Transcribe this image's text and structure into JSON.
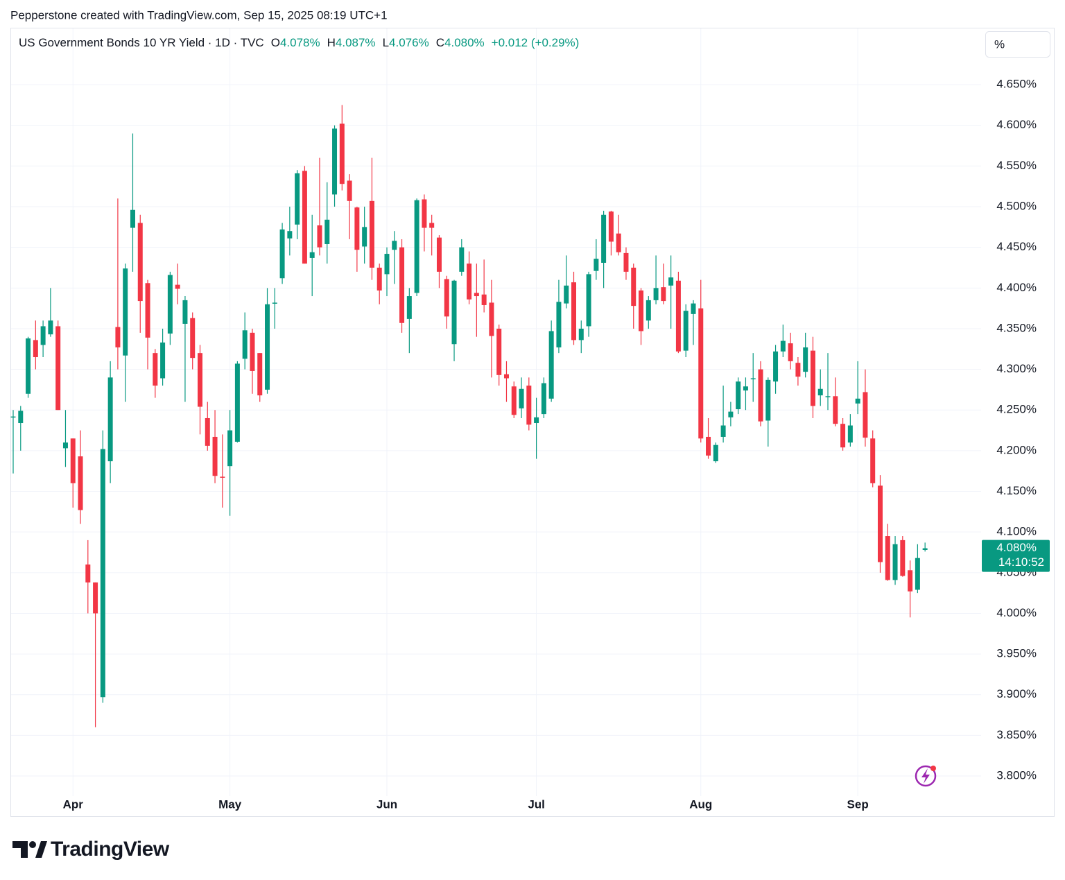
{
  "watermark": "Pepperstone created with TradingView.com, Sep 15, 2025 08:19 UTC+1",
  "header": {
    "symbol": "US Government Bonds 10 YR Yield · 1D · TVC",
    "ohlc": [
      {
        "key": "O",
        "value": "4.078%"
      },
      {
        "key": "H",
        "value": "4.087%"
      },
      {
        "key": "L",
        "value": "4.076%"
      },
      {
        "key": "C",
        "value": "4.080%"
      }
    ],
    "change": "+0.012 (+0.29%)"
  },
  "brand": "TradingView",
  "chart_data": {
    "type": "candlestick",
    "axis_unit": "%",
    "up_color": "#089981",
    "down_color": "#f23645",
    "categories": [
      null,
      null,
      null,
      null,
      null,
      null,
      null,
      null,
      "Apr",
      null,
      null,
      null,
      null,
      null,
      null,
      null,
      null,
      null,
      null,
      null,
      null,
      null,
      null,
      null,
      null,
      null,
      null,
      null,
      null,
      "May",
      null,
      null,
      null,
      null,
      null,
      null,
      null,
      null,
      null,
      null,
      null,
      null,
      null,
      null,
      null,
      null,
      null,
      null,
      null,
      null,
      "Jun",
      null,
      null,
      null,
      null,
      null,
      null,
      null,
      null,
      null,
      null,
      null,
      null,
      null,
      null,
      null,
      null,
      null,
      null,
      null,
      "Jul",
      null,
      null,
      null,
      null,
      null,
      null,
      null,
      null,
      null,
      null,
      null,
      null,
      null,
      null,
      null,
      null,
      null,
      null,
      null,
      null,
      null,
      "Aug",
      null,
      null,
      null,
      null,
      null,
      null,
      null,
      null,
      null,
      null,
      null,
      null,
      null,
      null,
      null,
      null,
      null,
      null,
      null,
      null,
      "Sep",
      null,
      null,
      null,
      null,
      null,
      null,
      null,
      null,
      null
    ],
    "open": [
      4.241,
      4.234,
      4.27,
      4.336,
      4.33,
      4.343,
      4.353,
      4.203,
      4.215,
      4.193,
      4.06,
      4.038,
      3.897,
      4.187,
      4.352,
      4.317,
      4.474,
      4.48,
      4.406,
      4.32,
      4.289,
      4.344,
      4.404,
      4.356,
      4.363,
      4.32,
      4.24,
      4.217,
      4.168,
      4.181,
      4.211,
      4.313,
      4.345,
      4.32,
      4.275,
      4.381,
      4.412,
      4.461,
      4.478,
      4.544,
      4.437,
      4.477,
      4.454,
      4.515,
      4.602,
      4.532,
      4.499,
      4.451,
      4.507,
      4.425,
      4.417,
      4.447,
      4.45,
      4.362,
      4.394,
      4.509,
      4.48,
      4.462,
      4.411,
      4.331,
      4.42,
      4.43,
      4.394,
      4.392,
      4.382,
      4.35,
      4.294,
      4.279,
      4.252,
      4.28,
      4.234,
      4.245,
      4.264,
      4.327,
      4.381,
      4.407,
      4.336,
      4.353,
      4.421,
      4.431,
      4.494,
      4.467,
      4.443,
      4.425,
      4.397,
      4.36,
      4.385,
      4.401,
      4.403,
      4.409,
      4.323,
      4.368,
      4.375,
      4.217,
      4.187,
      4.217,
      4.241,
      4.251,
      4.274,
      4.288,
      4.3,
      4.237,
      4.285,
      4.322,
      4.332,
      4.308,
      4.297,
      4.323,
      4.268,
      4.266,
      4.267,
      4.233,
      4.21,
      4.258,
      4.272,
      4.215,
      4.157,
      4.095,
      4.041,
      4.09,
      4.053,
      4.029,
      4.078
    ],
    "high": [
      4.25,
      4.255,
      4.34,
      4.36,
      4.36,
      4.4,
      4.36,
      4.25,
      4.215,
      4.225,
      4.09,
      4.038,
      4.225,
      4.31,
      4.51,
      4.43,
      4.59,
      4.49,
      4.41,
      4.325,
      4.35,
      4.42,
      4.43,
      4.39,
      4.37,
      4.33,
      4.26,
      4.25,
      4.22,
      4.25,
      4.31,
      4.37,
      4.35,
      4.32,
      4.4,
      4.4,
      4.48,
      4.5,
      4.545,
      4.55,
      4.49,
      4.56,
      4.53,
      4.6,
      4.625,
      4.54,
      4.5,
      4.5,
      4.56,
      4.43,
      4.45,
      4.47,
      4.46,
      4.4,
      4.51,
      4.515,
      4.49,
      4.465,
      4.415,
      4.41,
      4.46,
      4.445,
      4.43,
      4.435,
      4.41,
      4.355,
      4.31,
      4.285,
      4.29,
      4.29,
      4.265,
      4.29,
      4.36,
      4.41,
      4.44,
      4.42,
      4.36,
      4.42,
      4.46,
      4.495,
      4.495,
      4.49,
      4.45,
      4.43,
      4.4,
      4.39,
      4.44,
      4.43,
      4.44,
      4.42,
      4.38,
      4.385,
      4.41,
      4.24,
      4.21,
      4.28,
      4.26,
      4.29,
      4.29,
      4.32,
      4.31,
      4.29,
      4.33,
      4.355,
      4.345,
      4.315,
      4.345,
      4.34,
      4.3,
      4.32,
      4.29,
      4.24,
      4.245,
      4.31,
      4.3,
      4.225,
      4.17,
      4.11,
      4.095,
      4.095,
      4.065,
      4.085,
      4.087
    ],
    "low": [
      4.172,
      4.2,
      4.265,
      4.3,
      4.315,
      4.34,
      4.25,
      4.18,
      4.13,
      4.11,
      4.0,
      3.86,
      3.89,
      4.16,
      4.3,
      4.26,
      4.42,
      4.345,
      4.3,
      4.265,
      4.28,
      4.33,
      4.38,
      4.26,
      4.3,
      4.22,
      4.2,
      4.16,
      4.13,
      4.12,
      4.21,
      4.3,
      4.27,
      4.26,
      4.27,
      4.35,
      4.405,
      4.44,
      4.46,
      4.43,
      4.39,
      4.44,
      4.43,
      4.5,
      4.52,
      4.46,
      4.42,
      4.43,
      4.41,
      4.38,
      4.39,
      4.405,
      4.345,
      4.32,
      4.39,
      4.445,
      4.44,
      4.4,
      4.35,
      4.31,
      4.415,
      4.38,
      4.34,
      4.37,
      4.29,
      4.28,
      4.26,
      4.24,
      4.24,
      4.225,
      4.19,
      4.24,
      4.26,
      4.32,
      4.375,
      4.33,
      4.32,
      4.34,
      4.41,
      4.4,
      4.44,
      4.44,
      4.41,
      4.35,
      4.33,
      4.35,
      4.38,
      4.38,
      4.35,
      4.32,
      4.315,
      4.33,
      4.21,
      4.19,
      4.185,
      4.21,
      4.23,
      4.245,
      4.25,
      4.26,
      4.23,
      4.205,
      4.27,
      4.315,
      4.3,
      4.28,
      4.29,
      4.24,
      4.255,
      4.25,
      4.23,
      4.2,
      4.205,
      4.245,
      4.205,
      4.155,
      4.05,
      4.04,
      4.035,
      4.045,
      3.995,
      4.025,
      4.076
    ],
    "close": [
      4.242,
      4.249,
      4.338,
      4.315,
      4.353,
      4.36,
      4.25,
      4.21,
      4.16,
      4.127,
      4.038,
      4.0,
      4.202,
      4.29,
      4.327,
      4.424,
      4.496,
      4.384,
      4.339,
      4.28,
      4.333,
      4.416,
      4.399,
      4.385,
      4.314,
      4.254,
      4.206,
      4.169,
      4.167,
      4.225,
      4.307,
      4.348,
      4.298,
      4.268,
      4.38,
      4.382,
      4.472,
      4.47,
      4.541,
      4.43,
      4.444,
      4.45,
      4.484,
      4.596,
      4.528,
      4.507,
      4.447,
      4.475,
      4.425,
      4.397,
      4.442,
      4.458,
      4.357,
      4.39,
      4.508,
      4.474,
      4.474,
      4.42,
      4.365,
      4.409,
      4.45,
      4.386,
      4.39,
      4.379,
      4.341,
      4.293,
      4.289,
      4.244,
      4.276,
      4.232,
      4.241,
      4.283,
      4.347,
      4.383,
      4.403,
      4.336,
      4.35,
      4.417,
      4.436,
      4.49,
      4.457,
      4.444,
      4.42,
      4.378,
      4.347,
      4.385,
      4.4,
      4.384,
      4.413,
      4.322,
      4.372,
      4.381,
      4.215,
      4.194,
      4.207,
      4.231,
      4.248,
      4.285,
      4.279,
      4.289,
      4.236,
      4.287,
      4.322,
      4.335,
      4.31,
      4.291,
      4.327,
      4.255,
      4.276,
      4.267,
      4.233,
      4.204,
      4.231,
      4.264,
      4.216,
      4.16,
      4.063,
      4.041,
      4.085,
      4.046,
      4.027,
      4.068,
      4.08
    ],
    "last_label": "4.080%",
    "countdown": "14:10:52",
    "ylim": [
      3.78,
      4.72
    ],
    "yticks": [
      {
        "value": 3.8,
        "label": "3.800%"
      },
      {
        "value": 3.85,
        "label": "3.850%"
      },
      {
        "value": 3.9,
        "label": "3.900%"
      },
      {
        "value": 3.95,
        "label": "3.950%"
      },
      {
        "value": 4.0,
        "label": "4.000%"
      },
      {
        "value": 4.05,
        "label": "4.050%"
      },
      {
        "value": 4.1,
        "label": "4.100%"
      },
      {
        "value": 4.15,
        "label": "4.150%"
      },
      {
        "value": 4.2,
        "label": "4.200%"
      },
      {
        "value": 4.25,
        "label": "4.250%"
      },
      {
        "value": 4.3,
        "label": "4.300%"
      },
      {
        "value": 4.35,
        "label": "4.350%"
      },
      {
        "value": 4.4,
        "label": "4.400%"
      },
      {
        "value": 4.45,
        "label": "4.450%"
      },
      {
        "value": 4.5,
        "label": "4.500%"
      },
      {
        "value": 4.55,
        "label": "4.550%"
      },
      {
        "value": 4.6,
        "label": "4.600%"
      },
      {
        "value": 4.65,
        "label": "4.650%"
      }
    ],
    "grid": true
  }
}
